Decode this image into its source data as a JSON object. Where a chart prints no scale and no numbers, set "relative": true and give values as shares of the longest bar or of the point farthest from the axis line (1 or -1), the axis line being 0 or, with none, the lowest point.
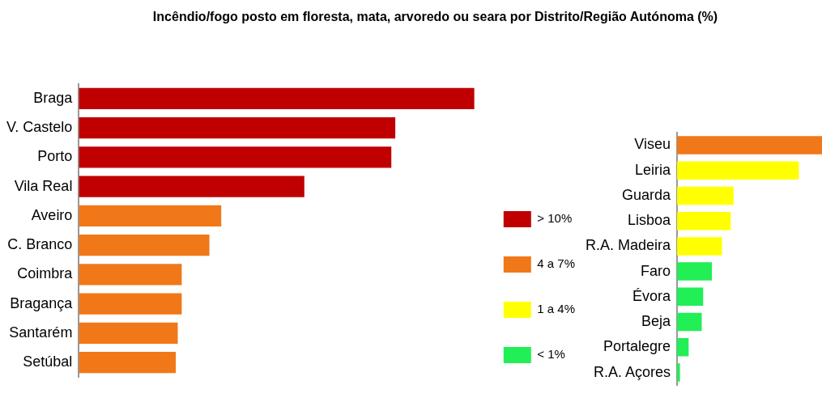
{
  "chart_data": [
    {
      "type": "bar",
      "title": "Incêndio/fogo posto em floresta, mata, arvoredo ou seara por Distrito/Região Autónoma (%)",
      "orientation": "horizontal",
      "relative": true,
      "stacked": true,
      "legend": "right",
      "categories": [
        "Braga",
        "V. Castelo",
        "Porto",
        "Vila Real",
        "Aveiro",
        "C. Branco",
        "Coimbra",
        "Bragança",
        "Santarém",
        "Setúbal"
      ],
      "series": [
        {
          "name": "> 10%",
          "color": "#c00000",
          "values": [
            1,
            0.8,
            0.79,
            0.57,
            null,
            null,
            null,
            null,
            null,
            null
          ]
        },
        {
          "name": "4 a 7%",
          "color": "#f07818",
          "values": [
            null,
            null,
            null,
            null,
            0.36,
            0.33,
            0.26,
            0.26,
            0.25,
            0.245
          ]
        },
        {
          "name": "1 a 4%",
          "color": "#ffff00",
          "values": [
            null,
            null,
            null,
            null,
            null,
            null,
            null,
            null,
            null,
            null
          ]
        },
        {
          "name": "< 1%",
          "color": "#22ee55",
          "values": [
            null,
            null,
            null,
            null,
            null,
            null,
            null,
            null,
            null,
            null
          ]
        }
      ]
    },
    {
      "type": "bar",
      "orientation": "horizontal",
      "relative": true,
      "categories": [
        "Viseu",
        "Leiria",
        "Guarda",
        "Lisboa",
        "R.A. Madeira",
        "Faro",
        "Évora",
        "Beja",
        "Portalegre",
        "R.A. Açores"
      ],
      "values": [
        1,
        0.84,
        0.39,
        0.37,
        0.31,
        0.24,
        0.18,
        0.17,
        0.08,
        0.02
      ],
      "colors": [
        "#f07818",
        "#ffff00",
        "#ffff00",
        "#ffff00",
        "#ffff00",
        "#22ee55",
        "#22ee55",
        "#22ee55",
        "#22ee55",
        "#22ee55"
      ]
    }
  ]
}
